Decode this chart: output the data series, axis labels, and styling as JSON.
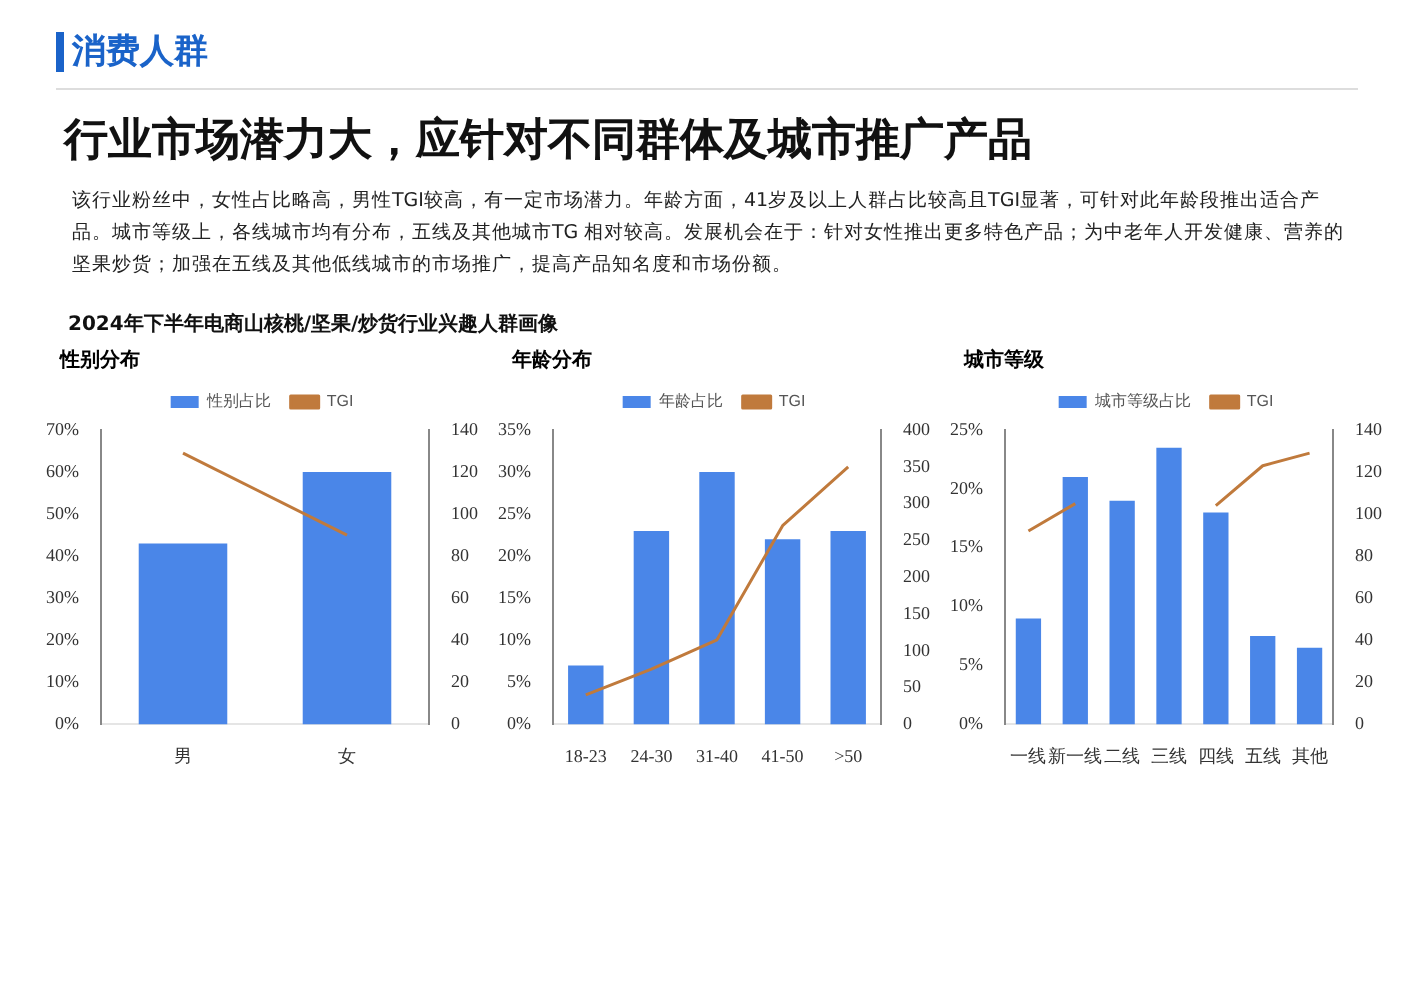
{
  "chart_data": [
    {
      "type": "bar",
      "title": "性别分布",
      "annotations": [
        "消费人群",
        "行业市场潜力大，应针对不同群体及城市推广产品",
        "该行业粉丝中，女性占比略高，男性TGI较高，有一定市场潜力。年龄方面，41岁及以上人群占比较高且TGI显著，可针对此年龄段推出适合产品。城市等级上，各线城市均有分布，五线及其他城市TG 相对较高。发展机会在于：针对女性推出更多特色产品；为中老年人开发健康、营养的坚果炒货；加强在五线及其他低线城市的市场推广，提高产品知名度和市场份额。",
        "2024年下半年电商山核桃/坚果/炒货行业兴趣人群画像"
      ],
      "categories": [
        "男",
        "女"
      ],
      "series": [
        {
          "name": "性别占比",
          "color": "#4a86e8",
          "values": [
            43,
            60
          ]
        },
        {
          "name": "TGI",
          "type": "line",
          "axis": "y2",
          "color": "#c07a3c",
          "values": [
            129,
            90
          ]
        }
      ],
      "ylim": [
        0,
        70
      ],
      "yticks": [
        {
          "value": 0,
          "label": "0%"
        },
        {
          "value": 10,
          "label": "10%"
        },
        {
          "value": 20,
          "label": "20%"
        },
        {
          "value": 30,
          "label": "30%"
        },
        {
          "value": 40,
          "label": "40%"
        },
        {
          "value": 50,
          "label": "50%"
        },
        {
          "value": 60,
          "label": "60%"
        },
        {
          "value": 70,
          "label": "70%"
        }
      ],
      "y2lim": [
        0,
        140
      ],
      "y2ticks": [
        0,
        20,
        40,
        60,
        80,
        100,
        120,
        140
      ],
      "legend": "top",
      "marker": "none"
    },
    {
      "type": "bar",
      "title": "年龄分布",
      "categories": [
        "18-23",
        "24-30",
        "31-40",
        "41-50",
        ">50"
      ],
      "series": [
        {
          "name": "年龄占比",
          "color": "#4a86e8",
          "values": [
            7,
            23,
            30,
            22,
            23
          ]
        },
        {
          "name": "TGI",
          "type": "line",
          "axis": "y2",
          "color": "#c07a3c",
          "values": [
            40,
            75,
            115,
            270,
            350
          ]
        }
      ],
      "ylim": [
        0,
        35
      ],
      "yticks": [
        {
          "value": 0,
          "label": "0%"
        },
        {
          "value": 5,
          "label": "5%"
        },
        {
          "value": 10,
          "label": "10%"
        },
        {
          "value": 15,
          "label": "15%"
        },
        {
          "value": 20,
          "label": "20%"
        },
        {
          "value": 25,
          "label": "25%"
        },
        {
          "value": 30,
          "label": "30%"
        },
        {
          "value": 35,
          "label": "35%"
        }
      ],
      "y2lim": [
        0,
        400
      ],
      "y2ticks": [
        0,
        50,
        100,
        150,
        200,
        250,
        300,
        350,
        400
      ],
      "legend": "top",
      "marker": "none"
    },
    {
      "type": "bar",
      "title": "城市等级",
      "categories": [
        "一线",
        "新一线",
        "二线",
        "三线",
        "四线",
        "五线",
        "其他"
      ],
      "series": [
        {
          "name": "城市等级占比",
          "color": "#4a86e8",
          "values": [
            9,
            21,
            19,
            23.5,
            18,
            7.5,
            6.5
          ]
        },
        {
          "name": "TGI",
          "type": "line",
          "axis": "y2",
          "color": "#c07a3c",
          "values": [
            92,
            105,
            null,
            null,
            104,
            123,
            129
          ]
        }
      ],
      "ylim": [
        0,
        25
      ],
      "yticks": [
        {
          "value": 0,
          "label": "0%"
        },
        {
          "value": 5,
          "label": "5%"
        },
        {
          "value": 10,
          "label": "10%"
        },
        {
          "value": 15,
          "label": "15%"
        },
        {
          "value": 20,
          "label": "20%"
        },
        {
          "value": 25,
          "label": "25%"
        }
      ],
      "y2lim": [
        0,
        140
      ],
      "y2ticks": [
        0,
        20,
        40,
        60,
        80,
        100,
        120,
        140
      ],
      "legend": "top",
      "marker": "none"
    }
  ]
}
